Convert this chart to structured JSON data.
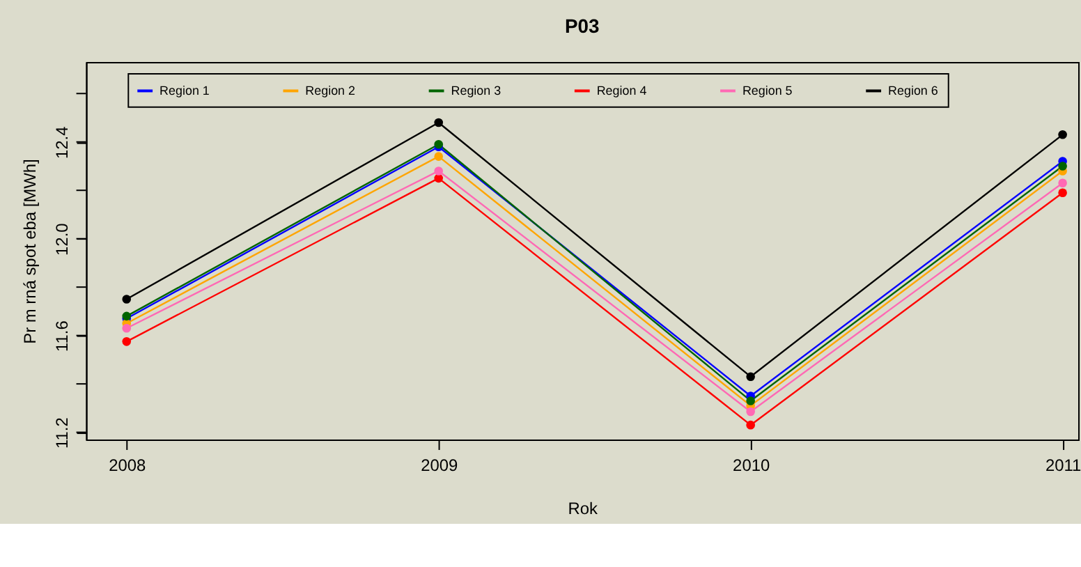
{
  "chart_data": {
    "type": "line",
    "title": "P03",
    "xlabel": "Rok",
    "ylabel": "Pr m rná spot eba [MWh]",
    "x": [
      2008,
      2009,
      2010,
      2011
    ],
    "series": [
      {
        "name": "Region 1",
        "color": "#0000ff",
        "values": [
          11.67,
          12.38,
          11.35,
          12.32
        ]
      },
      {
        "name": "Region 2",
        "color": "#ffa500",
        "values": [
          11.65,
          12.34,
          11.31,
          12.28
        ]
      },
      {
        "name": "Region 3",
        "color": "#006400",
        "values": [
          11.68,
          12.39,
          11.33,
          12.3
        ]
      },
      {
        "name": "Region 4",
        "color": "#ff0000",
        "values": [
          11.575,
          12.25,
          11.23,
          12.19
        ]
      },
      {
        "name": "Region 5",
        "color": "#ff69b4",
        "values": [
          11.63,
          12.28,
          11.285,
          12.23
        ]
      },
      {
        "name": "Region 6",
        "color": "#000000",
        "values": [
          11.75,
          12.48,
          11.43,
          12.43
        ]
      }
    ],
    "xlim": [
      2007.87,
      2011.05
    ],
    "xticks": [
      2008,
      2009,
      2010,
      2011
    ],
    "ylim": [
      11.17,
      12.73
    ],
    "yticks": [
      11.2,
      {
        "value": 11.4,
        "label": null
      },
      11.6,
      {
        "value": 11.8,
        "label": null
      },
      {
        "value": 12.0,
        "label": "12.0"
      },
      {
        "value": 12.2,
        "label": null
      },
      12.4,
      {
        "value": 12.6,
        "label": null
      }
    ],
    "grid": false,
    "legend": "top",
    "marker": "circle",
    "line_style": "solid"
  }
}
